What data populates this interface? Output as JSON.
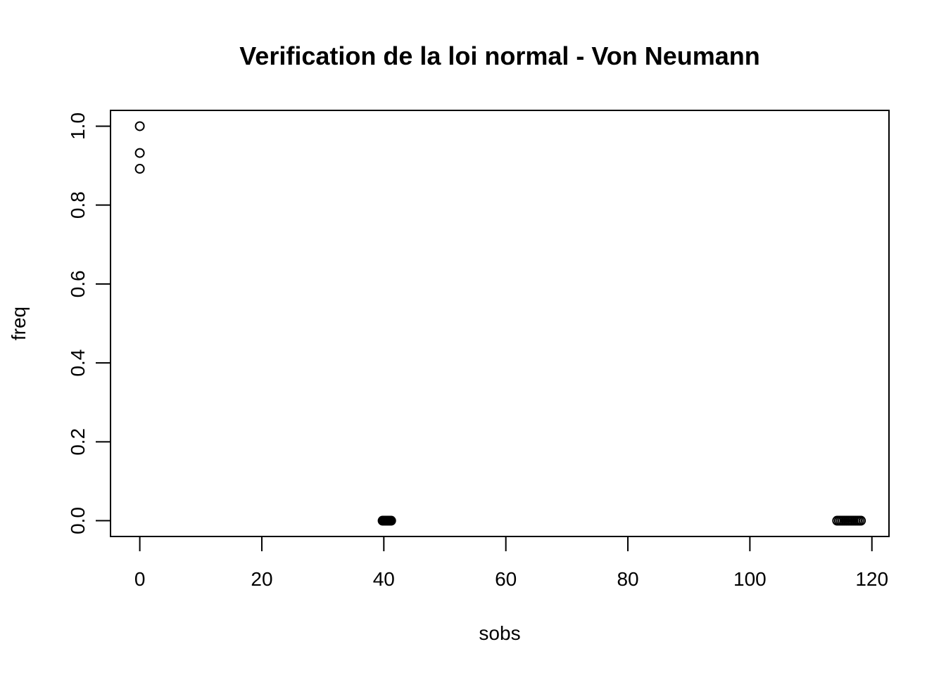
{
  "chart_data": {
    "type": "scatter",
    "title": "Verification de la loi normal - Von Neumann",
    "xlabel": "sobs",
    "ylabel": "freq",
    "xlim": [
      -4.8,
      122.8
    ],
    "ylim": [
      -0.04,
      1.04
    ],
    "x_ticks": [
      0,
      20,
      40,
      60,
      80,
      100,
      120
    ],
    "x_tick_labels": [
      "0",
      "20",
      "40",
      "60",
      "80",
      "100",
      "120"
    ],
    "y_ticks": [
      0.0,
      0.2,
      0.4,
      0.6,
      0.8,
      1.0
    ],
    "y_tick_labels": [
      "0.0",
      "0.2",
      "0.4",
      "0.6",
      "0.8",
      "1.0"
    ],
    "grid": false,
    "marker": "open-circle",
    "series": [
      {
        "points": [
          {
            "x": 0.0,
            "y": 1.0
          },
          {
            "x": 0.0,
            "y": 0.932
          },
          {
            "x": 0.0,
            "y": 0.892
          },
          {
            "x": 39.8,
            "y": 0.0
          },
          {
            "x": 40.0,
            "y": 0.0
          },
          {
            "x": 40.2,
            "y": 0.0
          },
          {
            "x": 40.4,
            "y": 0.0
          },
          {
            "x": 40.6,
            "y": 0.0
          },
          {
            "x": 40.8,
            "y": 0.0
          },
          {
            "x": 41.0,
            "y": 0.0
          },
          {
            "x": 41.2,
            "y": 0.0
          },
          {
            "x": 114.3,
            "y": 0.0
          },
          {
            "x": 114.6,
            "y": 0.0
          },
          {
            "x": 114.9,
            "y": 0.0
          },
          {
            "x": 115.2,
            "y": 0.0
          },
          {
            "x": 115.5,
            "y": 0.0
          },
          {
            "x": 115.8,
            "y": 0.0
          },
          {
            "x": 116.1,
            "y": 0.0
          },
          {
            "x": 116.4,
            "y": 0.0
          },
          {
            "x": 116.7,
            "y": 0.0
          },
          {
            "x": 117.0,
            "y": 0.0
          },
          {
            "x": 117.3,
            "y": 0.0
          },
          {
            "x": 117.6,
            "y": 0.0
          },
          {
            "x": 117.9,
            "y": 0.0
          },
          {
            "x": 118.2,
            "y": 0.0
          }
        ]
      }
    ]
  }
}
